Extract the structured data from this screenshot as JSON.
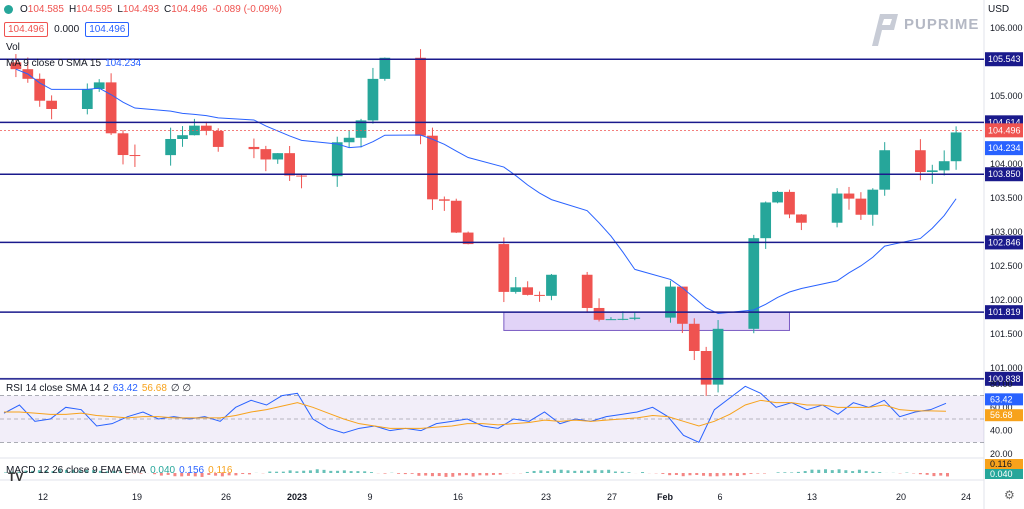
{
  "header": {
    "open_label": "O",
    "open": "104.585",
    "high_label": "H",
    "high": "104.595",
    "low_label": "L",
    "low": "104.493",
    "close_label": "C",
    "close": "104.496",
    "change": "-0.089 (-0.09%)",
    "bid": "104.496",
    "spread": "0.000",
    "ask": "104.496",
    "currency": "USD"
  },
  "brand": {
    "name": "PUPRIME"
  },
  "tv_logo": "TV",
  "chart_data": [
    {
      "type": "candlestick",
      "title": "",
      "legend": [
        {
          "text": "Vol"
        },
        {
          "text": "MA 9 close 0 SMA 15",
          "value": "104.234"
        }
      ],
      "ylim": [
        100.85,
        106.15
      ],
      "yticks": [
        106.0,
        105.5,
        105.0,
        104.5,
        104.0,
        103.5,
        103.0,
        102.5,
        102.0,
        101.5,
        101.0
      ],
      "ytick_labels": [
        "106.000",
        "105.500",
        "105.000",
        "104.500",
        "104.000",
        "103.500",
        "103.000",
        "102.500",
        "102.000",
        "101.500",
        "101.000"
      ],
      "xtick_labels": [
        "12",
        "19",
        "26",
        "2023",
        "9",
        "16",
        "23",
        "27",
        "Feb",
        "6",
        "13",
        "20",
        "24"
      ],
      "horizontal_levels": [
        105.543,
        104.614,
        103.85,
        102.846,
        101.819,
        100.838
      ],
      "level_labels": [
        "105.543",
        "104.614",
        "103.850",
        "102.846",
        "101.819",
        "100.838"
      ],
      "last_price": "104.496",
      "ma_value": "104.234",
      "zone": {
        "from_date": "2023-01-16",
        "to_date": "2023-02-09",
        "low": 101.55,
        "high": 101.819
      },
      "colors": {
        "up": "#26a69a",
        "down": "#ef5350",
        "ma": "#2962ff",
        "level": "#1a1a8c",
        "zone": "#d9c8f5"
      },
      "series": [
        {
          "name": "close",
          "key_points": [
            {
              "x": "2022-12-06",
              "y": 105.4
            },
            {
              "x": "2022-12-09",
              "y": 104.9
            },
            {
              "x": "2022-12-13",
              "y": 105.2
            },
            {
              "x": "2022-12-15",
              "y": 104.0
            },
            {
              "x": "2022-12-20",
              "y": 104.5
            },
            {
              "x": "2022-12-23",
              "y": 104.4
            },
            {
              "x": "2022-12-28",
              "y": 104.1
            },
            {
              "x": "2022-12-30",
              "y": 103.8
            },
            {
              "x": "2023-01-03",
              "y": 104.5
            },
            {
              "x": "2023-01-06",
              "y": 105.4
            },
            {
              "x": "2023-01-08",
              "y": 105.6
            },
            {
              "x": "2023-01-10",
              "y": 103.5
            },
            {
              "x": "2023-01-12",
              "y": 103.1
            },
            {
              "x": "2023-01-16",
              "y": 102.1
            },
            {
              "x": "2023-01-20",
              "y": 102.2
            },
            {
              "x": "2023-01-25",
              "y": 101.7
            },
            {
              "x": "2023-01-30",
              "y": 102.1
            },
            {
              "x": "2023-02-02",
              "y": 100.9
            },
            {
              "x": "2023-02-06",
              "y": 103.0
            },
            {
              "x": "2023-02-08",
              "y": 103.6
            },
            {
              "x": "2023-02-10",
              "y": 103.1
            },
            {
              "x": "2023-02-13",
              "y": 103.6
            },
            {
              "x": "2023-02-15",
              "y": 103.2
            },
            {
              "x": "2023-02-17",
              "y": 104.3
            },
            {
              "x": "2023-02-20",
              "y": 103.9
            },
            {
              "x": "2023-02-22",
              "y": 104.2
            },
            {
              "x": "2023-02-23",
              "y": 104.496
            }
          ]
        }
      ]
    },
    {
      "type": "line",
      "title": "",
      "legend": [
        {
          "text": "RSI 14 close SMA 14 2",
          "value": "63.42",
          "value2": "56.68",
          "value3": "∅ ∅"
        }
      ],
      "ylim": [
        20,
        80
      ],
      "yticks": [
        80,
        60,
        40,
        20
      ],
      "ytick_labels": [
        "80.00",
        "60.00",
        "40.00",
        "20.00"
      ],
      "band": [
        30,
        70
      ],
      "last_values": [
        "63.42",
        "56.68"
      ],
      "series": [
        {
          "name": "RSI",
          "color": "#2962ff",
          "values": [
            55,
            62,
            48,
            50,
            60,
            58,
            44,
            46,
            52,
            56,
            50,
            52,
            50,
            52,
            48,
            60,
            66,
            62,
            70,
            72,
            50,
            42,
            38,
            42,
            44,
            40,
            42,
            40,
            46,
            48,
            50,
            44,
            42,
            50,
            48,
            56,
            46,
            50,
            48,
            52,
            54,
            56,
            60,
            52,
            36,
            30,
            58,
            68,
            78,
            72,
            60,
            64,
            58,
            62,
            54,
            64,
            60,
            66,
            52,
            56,
            58,
            63.42
          ]
        },
        {
          "name": "SMA",
          "color": "#f7a21b",
          "values": [
            56,
            56,
            55,
            54,
            54,
            55,
            53,
            52,
            51,
            52,
            52,
            51,
            51,
            51,
            51,
            53,
            56,
            58,
            61,
            64,
            60,
            55,
            50,
            46,
            44,
            42,
            42,
            42,
            43,
            44,
            46,
            46,
            45,
            46,
            47,
            49,
            48,
            49,
            48,
            49,
            50,
            51,
            53,
            52,
            48,
            44,
            48,
            54,
            62,
            66,
            64,
            64,
            62,
            62,
            60,
            60,
            60,
            62,
            58,
            57,
            57,
            56.68
          ]
        }
      ]
    },
    {
      "type": "bar",
      "title": "",
      "legend": [
        {
          "text": "MACD 12 26 close 9 EMA EMA",
          "value": "0.040",
          "value2": "0.156",
          "value3": "0.116"
        }
      ],
      "last_values": [
        "0.116",
        "0.040"
      ]
    }
  ]
}
